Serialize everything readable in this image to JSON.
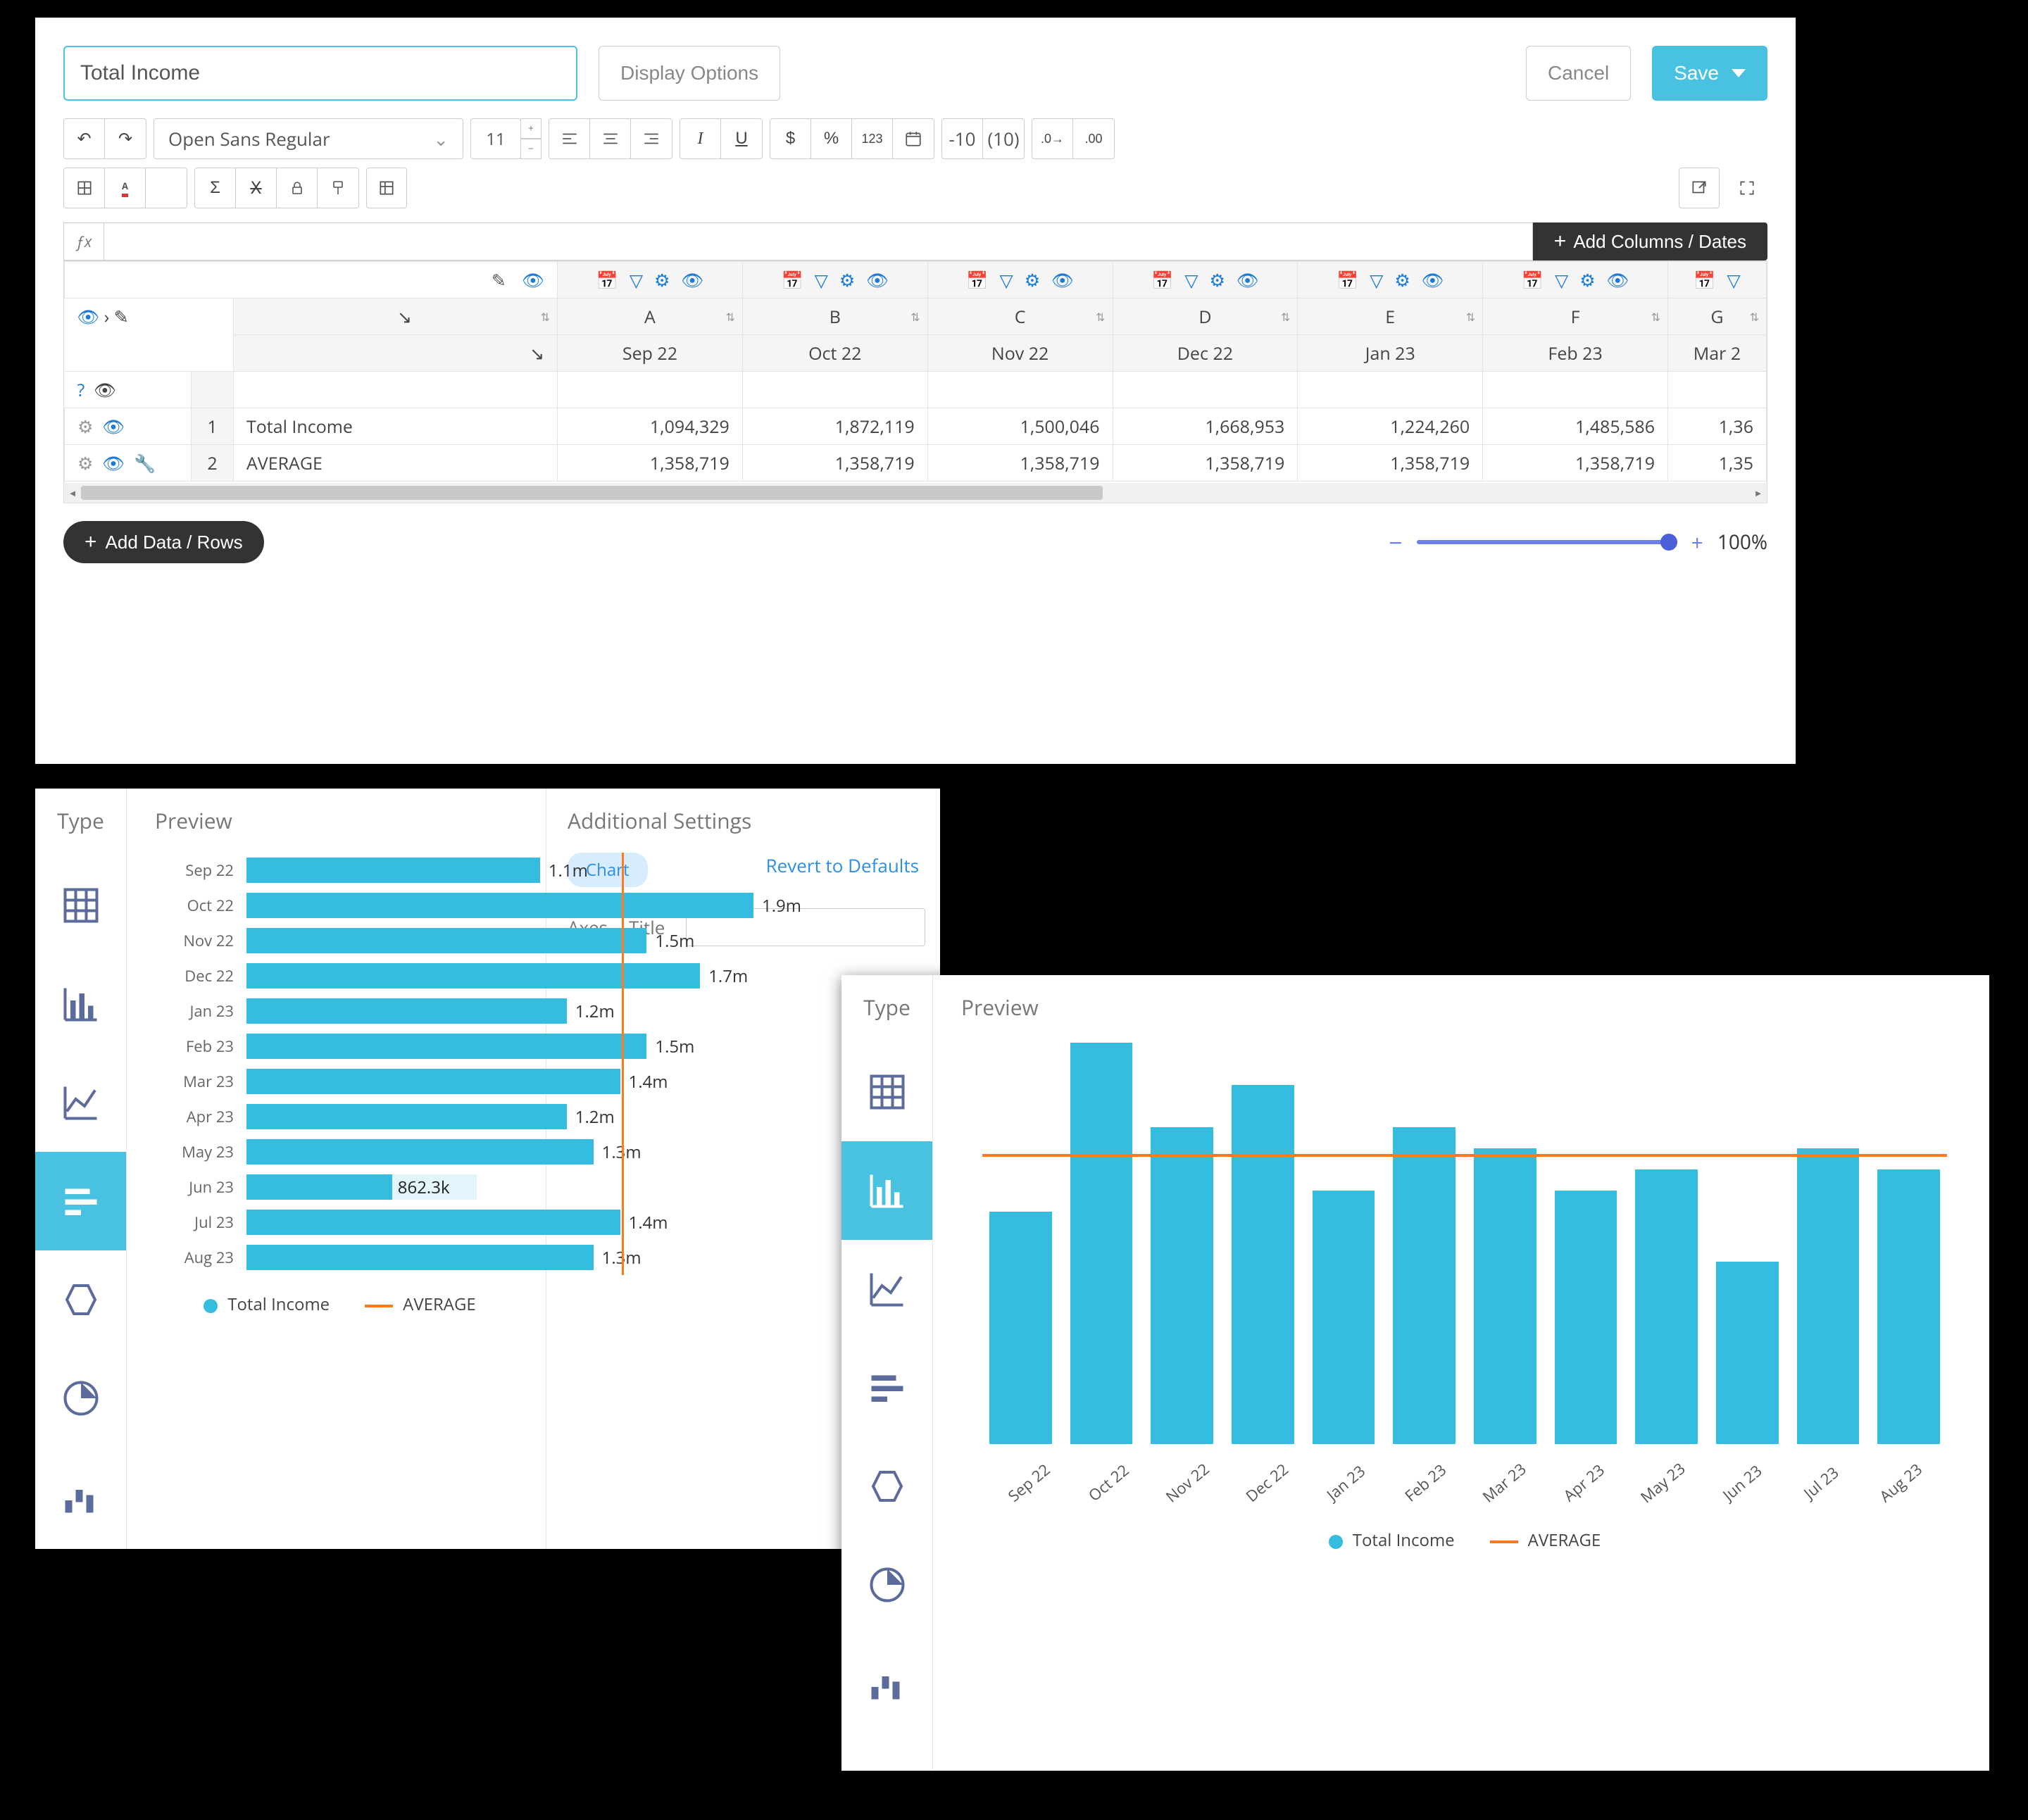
{
  "editor": {
    "title": "Total Income",
    "display_options": "Display Options",
    "cancel": "Cancel",
    "save": "Save",
    "font_name": "Open Sans Regular",
    "font_size": "11",
    "neg_fmt": "-10",
    "paren_fmt": "(10)",
    "add_cols": "Add Columns / Dates",
    "add_rows": "Add Data / Rows",
    "zoom": "100%",
    "columns": [
      "A",
      "B",
      "C",
      "D",
      "E",
      "F",
      "G"
    ],
    "col_months": [
      "Sep 22",
      "Oct 22",
      "Nov 22",
      "Dec 22",
      "Jan 23",
      "Feb 23",
      "Mar 2"
    ],
    "rows": [
      {
        "ix": "1",
        "label": "Total Income",
        "cells": [
          "1,094,329",
          "1,872,119",
          "1,500,046",
          "1,668,953",
          "1,224,260",
          "1,485,586",
          "1,36"
        ]
      },
      {
        "ix": "2",
        "label": "AVERAGE",
        "cells": [
          "1,358,719",
          "1,358,719",
          "1,358,719",
          "1,358,719",
          "1,358,719",
          "1,358,719",
          "1,35"
        ]
      }
    ]
  },
  "typecol_title": "Type",
  "preview_title": "Preview",
  "settings": {
    "title": "Additional Settings",
    "chart_pill": "Chart",
    "revert": "Revert to Defaults",
    "axes": "Axes",
    "title_label": "Title"
  },
  "chart": {
    "series_name": "Total Income",
    "avg_name": "AVERAGE",
    "bar_color": "#35bde0",
    "avg_color": "#ff7a1a",
    "categories": [
      "Sep 22",
      "Oct 22",
      "Nov 22",
      "Dec 22",
      "Jan 23",
      "Feb 23",
      "Mar 23",
      "Apr 23",
      "May 23",
      "Jun 23",
      "Jul 23",
      "Aug 23"
    ],
    "values": [
      1.1,
      1.9,
      1.5,
      1.7,
      1.2,
      1.5,
      1.4,
      1.2,
      1.3,
      0.8623,
      1.4,
      1.3
    ],
    "value_labels": [
      "1.1m",
      "1.9m",
      "1.5m",
      "1.7m",
      "1.2m",
      "1.5m",
      "1.4m",
      "1.2m",
      "1.3m",
      "862.3k",
      "1.4m",
      "1.3m"
    ],
    "average": 1.36,
    "max": 1.9
  }
}
